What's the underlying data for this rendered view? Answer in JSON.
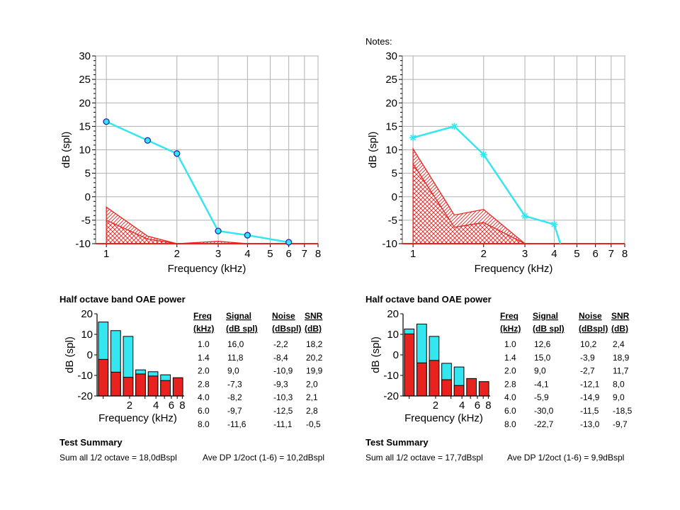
{
  "notes_label": "Notes:",
  "colors": {
    "signal": "#33e6f0",
    "noise": "#e8231f",
    "grid": "#b0b0b0"
  },
  "chart_data": [
    {
      "id": "dp-left",
      "type": "line",
      "x_scale": "log",
      "xlabel": "Frequency (kHz)",
      "ylabel": "dB (spl)",
      "xlim": [
        0.9,
        8.0
      ],
      "ylim": [
        -10,
        30
      ],
      "x_ticks": [
        1,
        2,
        3,
        4,
        5,
        6,
        7,
        8
      ],
      "y_ticks": [
        30,
        25,
        20,
        15,
        10,
        5,
        0,
        -5,
        -10
      ],
      "grid": true,
      "marker": "circle",
      "signal": {
        "x": [
          1,
          1.5,
          2,
          3,
          4,
          6
        ],
        "y": [
          16,
          12,
          9.2,
          -7.3,
          -8.2,
          -9.7
        ]
      },
      "noise_upper": {
        "x": [
          1,
          1.5,
          2,
          3,
          4,
          6,
          8
        ],
        "y": [
          -2.2,
          -8.4,
          -10,
          -9.5,
          -10,
          -10,
          -10
        ]
      },
      "noise_lower": {
        "x": [
          1,
          1.5,
          2,
          3,
          4,
          6,
          8
        ],
        "y": [
          -5,
          -9,
          -10,
          -10,
          -10,
          -10,
          -10
        ]
      }
    },
    {
      "id": "dp-right",
      "type": "line",
      "x_scale": "log",
      "xlabel": "Frequency (kHz)",
      "ylabel": "dB (spl)",
      "xlim": [
        0.9,
        8.0
      ],
      "ylim": [
        -10,
        30
      ],
      "x_ticks": [
        1,
        2,
        3,
        4,
        5,
        6,
        7,
        8
      ],
      "y_ticks": [
        30,
        25,
        20,
        15,
        10,
        5,
        0,
        -5,
        -10
      ],
      "grid": true,
      "marker": "asterisk",
      "signal": {
        "x": [
          1,
          1.5,
          2,
          3,
          4,
          4.25
        ],
        "y": [
          12.6,
          15,
          9,
          -4.1,
          -5.9,
          -10
        ]
      },
      "noise_upper": {
        "x": [
          1,
          1.5,
          2,
          3,
          4,
          6,
          8
        ],
        "y": [
          10.2,
          -3.9,
          -2.7,
          -10,
          -10,
          -10,
          -10
        ]
      },
      "noise_lower": {
        "x": [
          1,
          1.5,
          2,
          3,
          4,
          6,
          8
        ],
        "y": [
          7,
          -6.5,
          -5.5,
          -10,
          -10,
          -10,
          -10
        ]
      }
    },
    {
      "id": "oae-left",
      "type": "bar",
      "title": "Half octave band OAE power",
      "xlabel": "Frequency (kHz)",
      "ylabel": "dB (spl)",
      "ylim": [
        -20,
        20
      ],
      "y_ticks": [
        20,
        10,
        0,
        -10,
        -20
      ],
      "x_ticks": [
        2,
        4,
        6,
        8
      ],
      "bars": {
        "freq": [
          1.0,
          1.4,
          2.0,
          2.8,
          4.0,
          6.0,
          8.0
        ],
        "signal": [
          16.0,
          11.8,
          9.0,
          -7.3,
          -8.2,
          -9.7,
          -11.6
        ],
        "noise": [
          -2.2,
          -8.4,
          -10.9,
          -9.3,
          -10.3,
          -12.5,
          -11.1
        ]
      },
      "table": {
        "headers": [
          [
            "Freq",
            "(kHz)"
          ],
          [
            "Signal",
            "(dB spl)"
          ],
          [
            "Noise",
            "(dBspl)"
          ],
          [
            "SNR",
            "(dB)"
          ]
        ],
        "rows": [
          [
            "1.0",
            "16,0",
            "-2,2",
            "18,2"
          ],
          [
            "1.4",
            "11,8",
            "-8,4",
            "20,2"
          ],
          [
            "2.0",
            "9,0",
            "-10,9",
            "19,9"
          ],
          [
            "2.8",
            "-7,3",
            "-9,3",
            "2,0"
          ],
          [
            "4.0",
            "-8,2",
            "-10,3",
            "2,1"
          ],
          [
            "6.0",
            "-9,7",
            "-12,5",
            "2,8"
          ],
          [
            "8.0",
            "-11,6",
            "-11,1",
            "-0,5"
          ]
        ]
      },
      "summary_title": "Test Summary",
      "summary_a": "Sum all 1/2 octave = 18,0dBspl",
      "summary_b": "Ave DP 1/2oct (1-6) = 10,2dBspl"
    },
    {
      "id": "oae-right",
      "type": "bar",
      "title": "Half octave band OAE power",
      "xlabel": "Frequency (kHz)",
      "ylabel": "dB (spl)",
      "ylim": [
        -20,
        20
      ],
      "y_ticks": [
        20,
        10,
        0,
        -10,
        -20
      ],
      "x_ticks": [
        2,
        4,
        6,
        8
      ],
      "bars": {
        "freq": [
          1.0,
          1.4,
          2.0,
          2.8,
          4.0,
          6.0,
          8.0
        ],
        "signal": [
          12.6,
          15.0,
          9.0,
          -4.1,
          -5.9,
          -30.0,
          -22.7
        ],
        "noise": [
          10.2,
          -3.9,
          -2.7,
          -12.1,
          -14.9,
          -11.5,
          -13.0
        ]
      },
      "table": {
        "headers": [
          [
            "Freq",
            "(kHz)"
          ],
          [
            "Signal",
            "(dB spl)"
          ],
          [
            "Noise",
            "(dBspl)"
          ],
          [
            "SNR",
            "(dB)"
          ]
        ],
        "rows": [
          [
            "1.0",
            "12,6",
            "10,2",
            "2,4"
          ],
          [
            "1.4",
            "15,0",
            "-3,9",
            "18,9"
          ],
          [
            "2.0",
            "9,0",
            "-2,7",
            "11,7"
          ],
          [
            "2.8",
            "-4,1",
            "-12,1",
            "8,0"
          ],
          [
            "4.0",
            "-5,9",
            "-14,9",
            "9,0"
          ],
          [
            "6.0",
            "-30,0",
            "-11,5",
            "-18,5"
          ],
          [
            "8.0",
            "-22,7",
            "-13,0",
            "-9,7"
          ]
        ]
      },
      "summary_title": "Test Summary",
      "summary_a": "Sum all 1/2 octave = 17,7dBspl",
      "summary_b": "Ave DP 1/2oct (1-6) = 9,9dBspl"
    }
  ]
}
